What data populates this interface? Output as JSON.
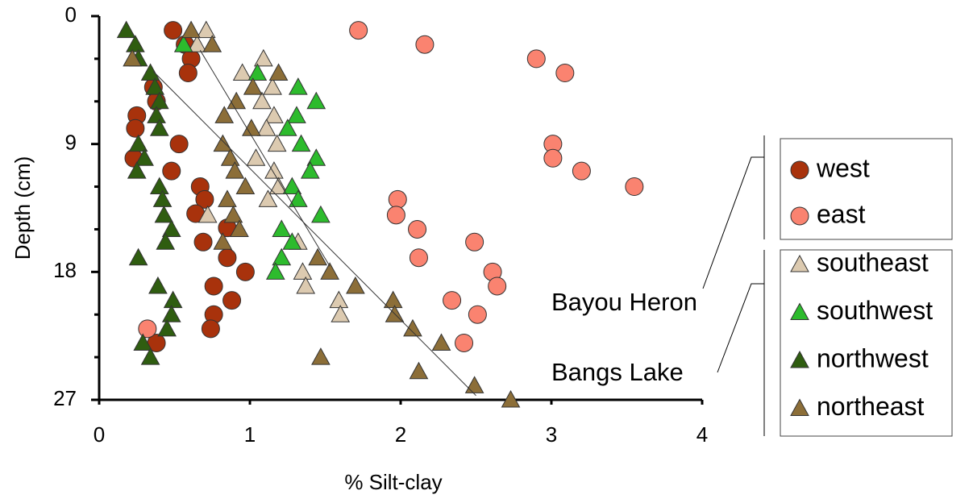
{
  "chart_data": {
    "type": "scatter",
    "x_label": "% Silt-clay",
    "y_label": "Depth (cm)",
    "xlim": [
      0,
      4
    ],
    "ylim": [
      0,
      27
    ],
    "y_inverted": true,
    "xticks": [
      0,
      1,
      2,
      3,
      4
    ],
    "yticks": [
      0,
      9,
      18,
      27
    ],
    "y_minor_ticks": [
      3,
      6,
      12,
      15,
      21,
      24
    ],
    "series": [
      {
        "name": "west",
        "group": "Bayou Heron",
        "marker": "circle",
        "color": "#a8320c",
        "x": [
          0.49,
          0.57,
          0.61,
          0.59,
          0.36,
          0.38,
          0.25,
          0.24,
          0.53,
          0.23,
          0.48,
          0.67,
          0.7,
          0.64,
          0.69,
          0.85,
          0.85,
          0.97,
          0.76,
          0.88,
          0.76,
          0.74,
          0.38
        ],
        "y": [
          1.0,
          2.0,
          3.0,
          4.0,
          5.0,
          6.0,
          7.0,
          7.9,
          9.0,
          10.0,
          10.9,
          12.0,
          12.9,
          13.9,
          15.9,
          14.9,
          17.0,
          18.0,
          19.0,
          20.0,
          21.0,
          22.0,
          23.0
        ]
      },
      {
        "name": "east",
        "group": "Bayou Heron",
        "marker": "circle",
        "color": "#fa8370",
        "x": [
          1.72,
          2.16,
          2.9,
          3.09,
          3.01,
          3.01,
          3.2,
          3.55,
          1.98,
          1.97,
          2.11,
          2.49,
          2.12,
          2.61,
          2.64,
          2.34,
          2.51,
          2.42,
          0.32
        ],
        "y": [
          1.0,
          2.0,
          3.0,
          4.0,
          9.0,
          10.0,
          10.9,
          12.0,
          12.9,
          14.0,
          15.0,
          15.9,
          17.0,
          18.0,
          19.0,
          20.0,
          21.0,
          23.0,
          22.0
        ]
      },
      {
        "name": "southeast",
        "group": "Bangs Lake",
        "marker": "triangle",
        "color": "#dccab0",
        "x": [
          0.71,
          0.65,
          1.09,
          0.95,
          1.15,
          1.08,
          1.16,
          1.11,
          1.18,
          1.04,
          1.16,
          1.19,
          1.12,
          0.72,
          1.32,
          1.35,
          1.37,
          1.59,
          1.6
        ],
        "y": [
          1.0,
          2.0,
          3.0,
          4.0,
          5.0,
          6.0,
          7.0,
          7.9,
          9.0,
          10.0,
          10.9,
          12.0,
          12.9,
          14.0,
          15.9,
          18.0,
          19.0,
          20.0,
          21.0
        ]
      },
      {
        "name": "southwest",
        "group": "Bangs Lake",
        "marker": "triangle",
        "color": "#2dbb2d",
        "x": [
          0.56,
          1.05,
          1.32,
          1.44,
          1.31,
          1.25,
          1.34,
          1.44,
          1.4,
          1.28,
          1.32,
          1.47,
          1.21,
          1.28,
          1.21,
          1.17
        ],
        "y": [
          2.0,
          4.0,
          5.0,
          6.0,
          7.0,
          7.9,
          9.0,
          10.0,
          10.9,
          12.0,
          12.9,
          14.0,
          15.0,
          15.9,
          17.0,
          18.0
        ]
      },
      {
        "name": "northwest",
        "group": "Bangs Lake",
        "marker": "triangle",
        "color": "#2f5d10",
        "x": [
          0.18,
          0.24,
          0.26,
          0.34,
          0.37,
          0.4,
          0.38,
          0.4,
          0.26,
          0.3,
          0.25,
          0.4,
          0.42,
          0.43,
          0.48,
          0.44,
          0.26,
          0.39,
          0.49,
          0.48,
          0.45,
          0.29,
          0.34
        ],
        "y": [
          1.0,
          2.0,
          3.0,
          4.0,
          5.0,
          6.0,
          7.0,
          7.9,
          9.0,
          10.0,
          10.9,
          12.0,
          12.9,
          14.0,
          15.0,
          15.9,
          17.0,
          19.0,
          20.0,
          21.0,
          22.0,
          23.0,
          24.0
        ]
      },
      {
        "name": "northeast",
        "group": "Bangs Lake",
        "marker": "triangle",
        "color": "#8c6e38",
        "x": [
          0.61,
          0.75,
          0.22,
          1.19,
          1.02,
          0.91,
          0.83,
          1.01,
          0.82,
          0.87,
          0.9,
          0.97,
          0.85,
          0.89,
          0.93,
          0.82,
          1.45,
          1.53,
          1.7,
          1.95,
          1.96,
          2.08,
          2.27,
          1.47,
          2.12,
          2.49,
          2.73
        ],
        "y": [
          1.0,
          2.0,
          3.0,
          4.0,
          5.0,
          6.0,
          7.0,
          7.9,
          9.0,
          10.0,
          10.9,
          12.0,
          12.9,
          14.0,
          15.0,
          15.9,
          17.0,
          18.0,
          19.0,
          20.0,
          21.0,
          22.0,
          23.0,
          24.0,
          25.0,
          26.0,
          27.0
        ]
      }
    ],
    "trendlines": [
      {
        "x": [
          0.36,
          2.5
        ],
        "y": [
          3.9,
          26.7
        ]
      },
      {
        "x": [
          0.67,
          1.53
        ],
        "y": [
          2.4,
          17.6
        ]
      }
    ]
  }
}
